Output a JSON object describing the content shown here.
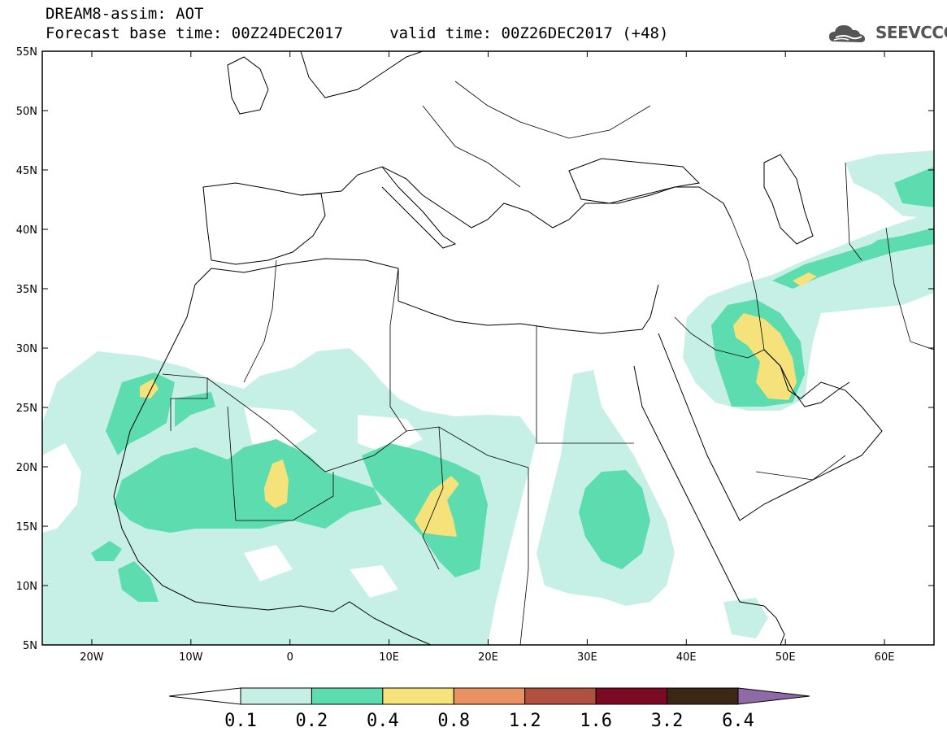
{
  "header": {
    "line1": "DREAM8-assim: AOT",
    "line2": "Forecast base time: 00Z24DEC2017     valid time: 00Z26DEC2017 (+48)"
  },
  "logo": {
    "text": "SEEVCCC",
    "icon": "cloud-icon",
    "color": "#555555"
  },
  "map": {
    "lon_range": [
      -25,
      65
    ],
    "lat_range": [
      5,
      55
    ],
    "lat_labels": [
      "55N",
      "50N",
      "45N",
      "40N",
      "35N",
      "30N",
      "25N",
      "20N",
      "15N",
      "10N",
      "5N"
    ],
    "lon_labels": [
      "20W",
      "10W",
      "0",
      "10E",
      "20E",
      "30E",
      "40E",
      "50E",
      "60E"
    ]
  },
  "colorbar": {
    "levels": [
      "0.1",
      "0.2",
      "0.4",
      "0.8",
      "1.2",
      "1.6",
      "3.2",
      "6.4"
    ],
    "colors": [
      "#ffffff",
      "#c6f0e6",
      "#5ddcb0",
      "#f5e27a",
      "#ea9164",
      "#b0503e",
      "#7d0a25",
      "#3c2614",
      "#8f6aa6"
    ]
  },
  "chart_data": {
    "type": "heatmap",
    "variable": "AOT",
    "xlim": [
      -25,
      65
    ],
    "ylim": [
      5,
      55
    ],
    "bins": [
      0.1,
      0.2,
      0.4,
      0.8,
      1.2,
      1.6,
      3.2,
      6.4
    ]
  }
}
